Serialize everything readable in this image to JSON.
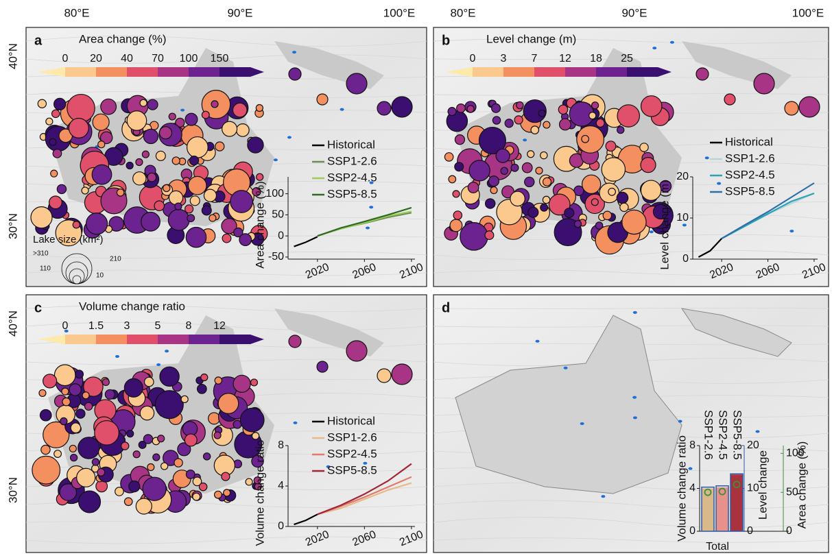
{
  "maps": {
    "lon_labels": [
      "80°E",
      "90°E",
      "100°E"
    ],
    "lat_labels": [
      "40°N",
      "30°N"
    ],
    "panels": [
      {
        "label": "a",
        "legend_title": "Area change (%)",
        "colorbar_ticks": [
          "0",
          "20",
          "40",
          "70",
          "100",
          "150"
        ]
      },
      {
        "label": "b",
        "legend_title": "Level change (m)",
        "colorbar_ticks": [
          "0",
          "3",
          "7",
          "12",
          "18",
          "25"
        ]
      },
      {
        "label": "c",
        "legend_title": "Volume change ratio",
        "colorbar_ticks": [
          "0",
          "1.5",
          "3",
          "5",
          "8",
          "12"
        ]
      },
      {
        "label": "d"
      }
    ],
    "size_legend": {
      "title": "Lake size (km²)",
      "labels": [
        ">310",
        "210",
        "110",
        "10"
      ]
    }
  },
  "chart_data": [
    {
      "type": "line",
      "y_label": "Area change (%)",
      "x": [
        2000,
        2010,
        2020,
        2040,
        2060,
        2080,
        2100
      ],
      "xlim": [
        1995,
        2103
      ],
      "xticks": [
        2020,
        2060,
        2100
      ],
      "ylim": [
        -55,
        140
      ],
      "yticks": [
        -50,
        0,
        50,
        100
      ],
      "series": [
        {
          "name": "Historical",
          "color": "#000000",
          "values": [
            -25,
            -15,
            -2,
            null,
            null,
            null,
            null
          ]
        },
        {
          "name": "SSP1-2.6",
          "color": "#6e8b50",
          "values": [
            null,
            null,
            0,
            18,
            30,
            44,
            55
          ]
        },
        {
          "name": "SSP2-4.5",
          "color": "#9ccc5e",
          "values": [
            null,
            null,
            0,
            17,
            31,
            47,
            58
          ]
        },
        {
          "name": "SSP5-8.5",
          "color": "#2f6a1f",
          "values": [
            null,
            null,
            0,
            19,
            34,
            50,
            67
          ]
        }
      ]
    },
    {
      "type": "line",
      "y_label": "Level change (m)",
      "x": [
        2000,
        2010,
        2020,
        2040,
        2060,
        2080,
        2100
      ],
      "xlim": [
        1995,
        2103
      ],
      "xticks": [
        2020,
        2060,
        2100
      ],
      "ylim": [
        0,
        20
      ],
      "yticks": [
        0,
        10,
        20
      ],
      "series": [
        {
          "name": "Historical",
          "color": "#000000",
          "values": [
            0.5,
            2,
            5,
            null,
            null,
            null,
            null
          ]
        },
        {
          "name": "SSP1-2.6",
          "color": "#b8d4d8",
          "values": [
            null,
            null,
            5,
            8,
            11,
            13.5,
            16
          ]
        },
        {
          "name": "SSP2-4.5",
          "color": "#2aa3b5",
          "values": [
            null,
            null,
            5,
            8,
            11,
            14,
            16
          ]
        },
        {
          "name": "SSP5-8.5",
          "color": "#2e6faa",
          "values": [
            null,
            null,
            5,
            8.3,
            11.5,
            15,
            18.5
          ]
        }
      ]
    },
    {
      "type": "line",
      "y_label": "Volume change ratio",
      "x": [
        2000,
        2010,
        2020,
        2040,
        2060,
        2080,
        2100
      ],
      "xlim": [
        1995,
        2103
      ],
      "xticks": [
        2020,
        2060,
        2100
      ],
      "ylim": [
        0,
        8
      ],
      "yticks": [
        0,
        4,
        8
      ],
      "series": [
        {
          "name": "Historical",
          "color": "#000000",
          "values": [
            0.2,
            0.6,
            1.2,
            null,
            null,
            null,
            null
          ]
        },
        {
          "name": "SSP1-2.6",
          "color": "#e8b98a",
          "values": [
            null,
            null,
            1.2,
            1.8,
            2.7,
            3.6,
            4.3
          ]
        },
        {
          "name": "SSP2-4.5",
          "color": "#e07a6a",
          "values": [
            null,
            null,
            1.2,
            2,
            2.9,
            3.9,
            4.9
          ]
        },
        {
          "name": "SSP5-8.5",
          "color": "#a32638",
          "values": [
            null,
            null,
            1.2,
            2.1,
            3.2,
            4.5,
            6.2
          ]
        }
      ]
    },
    {
      "type": "bar",
      "categories": [
        "SSP1-2.6",
        "SSP2-4.5",
        "SSP5-8.5"
      ],
      "colors": [
        "#d9b98a",
        "#e8908a",
        "#a8323e"
      ],
      "x_label": "Total",
      "y_label": "Volume change ratio",
      "ylim": [
        0,
        8
      ],
      "yticks": [
        0,
        4,
        8
      ],
      "y2_label": "Level change",
      "y2lim": [
        0,
        20
      ],
      "y2ticks": [
        0,
        10,
        20
      ],
      "y3_label": "Area change (%)",
      "y3lim": [
        0,
        110
      ],
      "y3ticks": [
        0,
        50,
        100
      ],
      "series": [
        {
          "name": "Volume change ratio",
          "color": "#b22f3f",
          "values": [
            4,
            4.1,
            5.3
          ]
        },
        {
          "name": "Level change",
          "color": "#2e58a6",
          "axis": "y2",
          "values": [
            10.3,
            10.6,
            13.4
          ]
        },
        {
          "name": "Area change (%)",
          "color": "#3f8f3a",
          "axis": "y3",
          "values": [
            50,
            51,
            60
          ]
        }
      ]
    }
  ]
}
